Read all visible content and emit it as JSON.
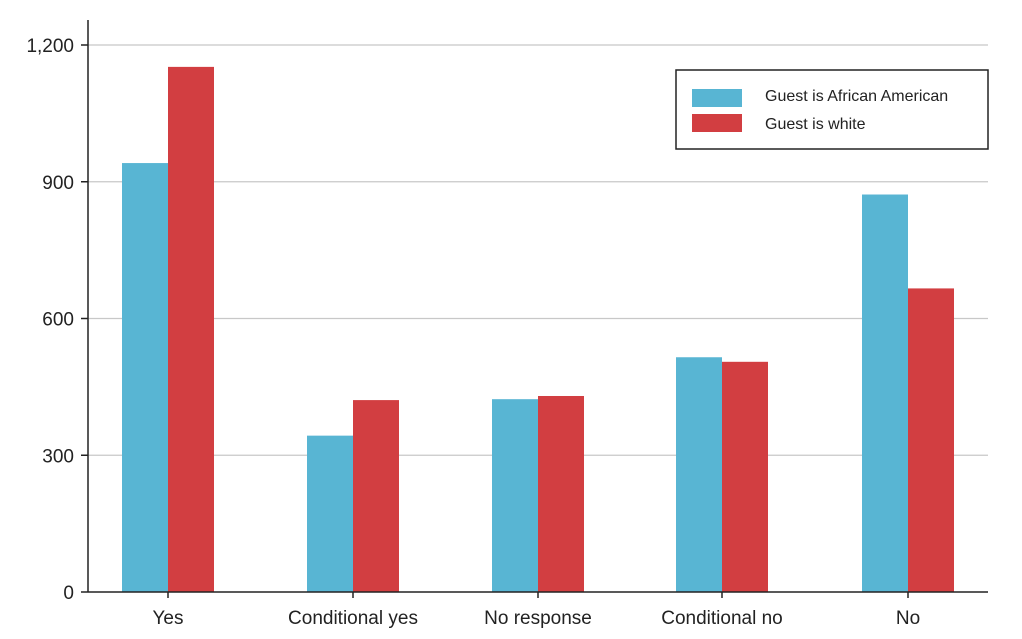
{
  "chart_data": {
    "type": "bar",
    "title": "",
    "xlabel": "",
    "ylabel": "",
    "categories": [
      "Yes",
      "Conditional yes",
      "No response",
      "Conditional no",
      "No"
    ],
    "series": [
      {
        "name": "Guest is African American",
        "color": "#58b5d3",
        "values": [
          941,
          343,
          423,
          515,
          872
        ]
      },
      {
        "name": "Guest is white",
        "color": "#d23e41",
        "values": [
          1152,
          421,
          430,
          505,
          666
        ]
      }
    ],
    "ylim": [
      0,
      1200
    ],
    "yticks": [
      0,
      300,
      600,
      900,
      1200
    ],
    "ytick_labels": [
      "0",
      "300",
      "600",
      "900",
      "1,200"
    ],
    "grid": true,
    "legend_position": "top-right"
  }
}
